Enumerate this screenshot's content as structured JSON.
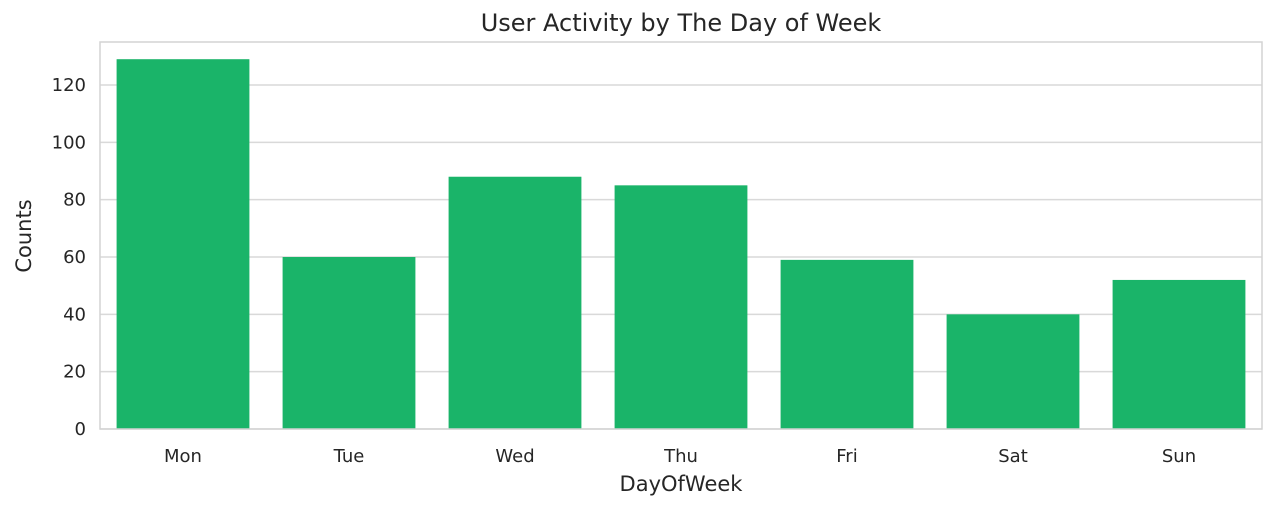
{
  "chart_data": {
    "type": "bar",
    "title": "User Activity by The Day of Week",
    "xlabel": "DayOfWeek",
    "ylabel": "Counts",
    "categories": [
      "Mon",
      "Tue",
      "Wed",
      "Thu",
      "Fri",
      "Sat",
      "Sun"
    ],
    "values": [
      129,
      60,
      88,
      85,
      59,
      40,
      52
    ],
    "ylim": [
      0,
      135
    ],
    "yticks": [
      0,
      20,
      40,
      60,
      80,
      100,
      120
    ],
    "grid": true,
    "bar_color": "#1ab469"
  }
}
